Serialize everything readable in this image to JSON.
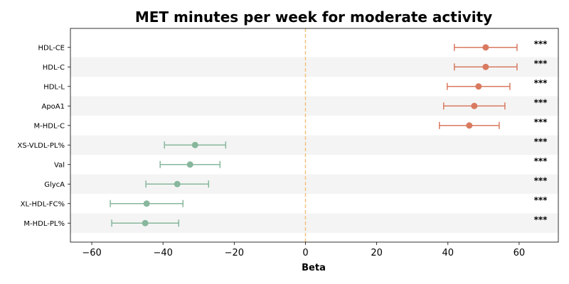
{
  "chart_data": {
    "type": "forest",
    "title": "MET minutes per week for moderate activity",
    "xlabel": "Beta",
    "ylabel": "",
    "xlim": [
      -66,
      71
    ],
    "xticks": [
      -60,
      -40,
      -20,
      0,
      20,
      40,
      60
    ],
    "xtick_labels": [
      "−60",
      "−40",
      "−20",
      "0",
      "20",
      "40",
      "60"
    ],
    "reference_line": 0,
    "colors": {
      "positive": "#d97a60",
      "negative": "#87b79c",
      "reference": "#f2c27e",
      "band": "#f4f4f4"
    },
    "rows": [
      {
        "label": "HDL-CE",
        "beta": 50.6,
        "ci": [
          41.8,
          59.4
        ],
        "sig": "***"
      },
      {
        "label": "HDL-C",
        "beta": 50.6,
        "ci": [
          41.8,
          59.4
        ],
        "sig": "***"
      },
      {
        "label": "HDL-L",
        "beta": 48.6,
        "ci": [
          39.8,
          57.4
        ],
        "sig": "***"
      },
      {
        "label": "ApoA1",
        "beta": 47.4,
        "ci": [
          38.8,
          56.0
        ],
        "sig": "***"
      },
      {
        "label": "M-HDL-C",
        "beta": 46.0,
        "ci": [
          37.6,
          54.4
        ],
        "sig": "***"
      },
      {
        "label": "XS-VLDL-PL%",
        "beta": -31.0,
        "ci": [
          -39.6,
          -22.4
        ],
        "sig": "***"
      },
      {
        "label": "Val",
        "beta": -32.4,
        "ci": [
          -40.8,
          -24.0
        ],
        "sig": "***"
      },
      {
        "label": "GlycA",
        "beta": -36.0,
        "ci": [
          -44.8,
          -27.2
        ],
        "sig": "***"
      },
      {
        "label": "XL-HDL-FC%",
        "beta": -44.6,
        "ci": [
          -54.8,
          -34.4
        ],
        "sig": "***"
      },
      {
        "label": "M-HDL-PL%",
        "beta": -45.0,
        "ci": [
          -54.4,
          -35.6
        ],
        "sig": "***"
      }
    ]
  }
}
